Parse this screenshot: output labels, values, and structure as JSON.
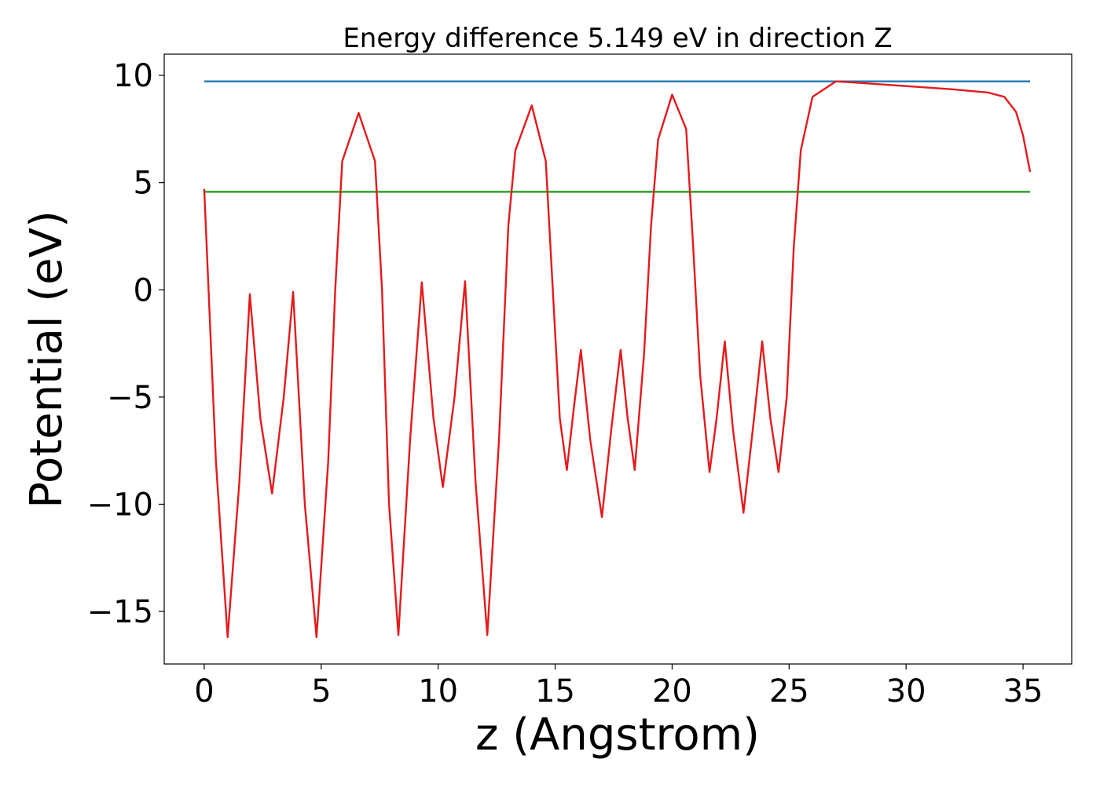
{
  "chart_data": {
    "type": "line",
    "title": "Energy difference 5.149 eV in direction Z",
    "x_label": "z (Angstrom)",
    "y_label": "Potential (eV)",
    "xlim": [
      -1.71,
      37.08
    ],
    "ylim": [
      -17.45,
      10.99
    ],
    "xticks": [
      0,
      5,
      10,
      15,
      20,
      25,
      30,
      35
    ],
    "yticks": [
      {
        "value": -15,
        "label": "−15"
      },
      {
        "value": -10,
        "label": "−10"
      },
      {
        "value": -5,
        "label": "−5"
      },
      0,
      5,
      10
    ],
    "grid": false,
    "series": [
      {
        "color": "#e41a1c",
        "x": [
          0,
          0.5,
          1.0,
          1.5,
          1.95,
          2.4,
          2.9,
          3.4,
          3.8,
          4.3,
          4.8,
          5.3,
          5.6,
          5.9,
          6.6,
          7.3,
          7.6,
          7.9,
          8.3,
          8.8,
          9.3,
          9.8,
          10.2,
          10.7,
          11.15,
          11.6,
          12.1,
          12.6,
          13.0,
          13.3,
          14.0,
          14.6,
          14.9,
          15.2,
          15.5,
          15.8,
          16.1,
          16.5,
          17.0,
          17.4,
          17.8,
          18.1,
          18.4,
          18.8,
          19.1,
          19.4,
          20.0,
          20.6,
          20.9,
          21.2,
          21.6,
          21.9,
          22.25,
          22.6,
          23.05,
          23.5,
          23.85,
          24.2,
          24.55,
          24.9,
          25.2,
          25.5,
          26.0,
          27.0,
          28.0,
          30.0,
          32.0,
          33.5,
          34.2,
          34.7,
          35.0,
          35.3
        ],
        "values": [
          4.7,
          -8,
          -16.2,
          -9,
          -0.2,
          -6,
          -9.5,
          -5,
          -0.1,
          -10,
          -16.2,
          -8,
          0,
          6,
          8.25,
          6,
          0,
          -10,
          -16.1,
          -7,
          0.35,
          -6,
          -9.2,
          -5,
          0.4,
          -9,
          -16.1,
          -7,
          3,
          6.5,
          8.6,
          6,
          0,
          -6,
          -8.4,
          -5.5,
          -2.8,
          -7,
          -10.6,
          -6.5,
          -2.8,
          -6,
          -8.4,
          -3,
          3,
          7,
          9.1,
          7.5,
          2,
          -4,
          -8.5,
          -6,
          -2.4,
          -6.5,
          -10.4,
          -6,
          -2.4,
          -6,
          -8.5,
          -5,
          2,
          6.5,
          9.0,
          9.72,
          9.65,
          9.5,
          9.35,
          9.2,
          9.0,
          8.3,
          7.2,
          5.5
        ]
      },
      {
        "color": "#1f77b4",
        "x": [
          0,
          35.3
        ],
        "values": [
          9.72,
          9.72
        ]
      },
      {
        "color": "#2ca02c",
        "x": [
          0,
          35.3
        ],
        "values": [
          4.571,
          4.571
        ]
      }
    ]
  }
}
